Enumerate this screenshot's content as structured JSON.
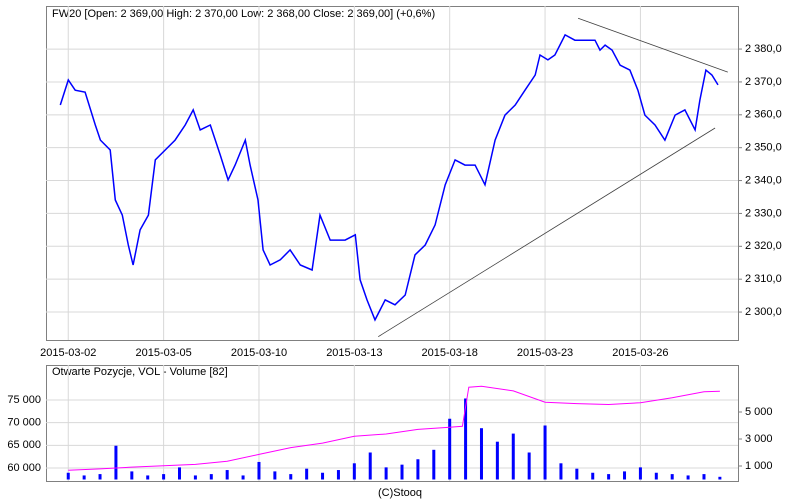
{
  "chart_data": [
    {
      "type": "line",
      "title": "FW20 [Open: 2 369,00  High: 2 370,00  Low: 2 368,00  Close: 2 369,00] (+0,6%)",
      "color": "#0000ff",
      "grid": true,
      "x": [
        -0.25,
        0,
        0.22,
        0.53,
        0.85,
        1.01,
        1.32,
        1.48,
        1.7,
        1.89,
        2.04,
        2.26,
        2.52,
        2.74,
        3.05,
        3.36,
        3.68,
        3.93,
        4.15,
        4.47,
        4.78,
        5.03,
        5.25,
        5.57,
        5.72,
        5.97,
        6.13,
        6.35,
        6.67,
        6.98,
        7.3,
        7.67,
        7.92,
        8.24,
        8.71,
        9.03,
        9.18,
        9.4,
        9.65,
        9.97,
        10.28,
        10.6,
        10.91,
        11.23,
        11.54,
        11.86,
        12.17,
        12.48,
        12.8,
        13.11,
        13.43,
        13.74,
        14.06,
        14.37,
        14.69,
        14.84,
        15.09,
        15.31,
        15.63,
        15.94,
        16.26,
        16.57,
        16.73,
        16.89,
        17.11,
        17.36,
        17.67,
        17.92,
        18.14,
        18.46,
        18.77,
        19.09,
        19.4,
        19.72,
        19.87,
        20.06,
        20.25,
        20.44
      ],
      "values": [
        2363,
        2370.6,
        2367.5,
        2366.9,
        2356.9,
        2352.3,
        2349.3,
        2334.1,
        2329.5,
        2320.4,
        2314.3,
        2325,
        2329.5,
        2346.3,
        2349.3,
        2352.3,
        2356.9,
        2361.5,
        2355.4,
        2356.9,
        2347.8,
        2340.2,
        2344.7,
        2352.3,
        2344.7,
        2334.1,
        2318.9,
        2314.3,
        2315.9,
        2318.9,
        2314.3,
        2312.8,
        2329.5,
        2321.9,
        2321.9,
        2323.5,
        2309.8,
        2303.7,
        2297.6,
        2303.7,
        2302.2,
        2305.2,
        2317.4,
        2320.4,
        2326.5,
        2338.7,
        2346.3,
        2344.7,
        2344.7,
        2338.7,
        2352.3,
        2359.9,
        2363,
        2367.5,
        2372.1,
        2378.2,
        2376.7,
        2378.2,
        2384.3,
        2382.7,
        2382.7,
        2382.7,
        2379.7,
        2381.2,
        2379.7,
        2375.1,
        2373.6,
        2367.5,
        2359.9,
        2356.9,
        2352.3,
        2359.9,
        2361.5,
        2355.4,
        2364.5,
        2373.6,
        2372.1,
        2369.1
      ],
      "lines": [
        {
          "x": [
            9.75,
            20.35
          ],
          "y": [
            2292.5,
            2356
          ]
        },
        {
          "x": [
            16.04,
            20.75
          ],
          "y": [
            2389.4,
            2373
          ]
        }
      ],
      "xlim": [
        -0.7,
        21.07
      ],
      "xticks": [
        {
          "value": 0,
          "label": "2015-03-02"
        },
        {
          "value": 3,
          "label": "2015-03-05"
        },
        {
          "value": 6,
          "label": "2015-03-10"
        },
        {
          "value": 9,
          "label": "2015-03-13"
        },
        {
          "value": 12,
          "label": "2015-03-18"
        },
        {
          "value": 15,
          "label": "2015-03-23"
        },
        {
          "value": 18,
          "label": "2015-03-26"
        }
      ],
      "ylim": [
        2291.5,
        2393.1
      ],
      "yticks": [
        {
          "value": 2300,
          "label": "2 300,0"
        },
        {
          "value": 2310,
          "label": "2 310,0"
        },
        {
          "value": 2320,
          "label": "2 320,0"
        },
        {
          "value": 2330,
          "label": "2 330,0"
        },
        {
          "value": 2340,
          "label": "2 340,0"
        },
        {
          "value": 2350,
          "label": "2 350,0"
        },
        {
          "value": 2360,
          "label": "2 360,0"
        },
        {
          "value": 2370,
          "label": "2 370,0"
        },
        {
          "value": 2380,
          "label": "2 380,0"
        }
      ]
    },
    {
      "type": "combo",
      "title": "Otwarte Pozycje, VOL - Volume [82]",
      "xlim": [
        -0.7,
        21.07
      ],
      "ylim": [
        57140,
        82700
      ],
      "yticks": [
        {
          "value": 60000,
          "label": "60 000"
        },
        {
          "value": 65000,
          "label": "65 000"
        },
        {
          "value": 70000,
          "label": "70 000"
        },
        {
          "value": 75000,
          "label": "75 000"
        }
      ],
      "y2lim": [
        -111,
        8481
      ],
      "y2ticks": [
        {
          "value": 1000,
          "label": "1 000"
        },
        {
          "value": 3000,
          "label": "3 000"
        },
        {
          "value": 5000,
          "label": "5 000"
        }
      ],
      "series": [
        {
          "type": "bar",
          "axis": "y2",
          "color": "#0000ff",
          "x": [
            0,
            0.5,
            1,
            1.5,
            2,
            2.5,
            3,
            3.5,
            4,
            4.5,
            5,
            5.5,
            6,
            6.5,
            7,
            7.5,
            8,
            8.5,
            9,
            9.5,
            10,
            10.5,
            11,
            11.5,
            12,
            12.5,
            13,
            13.5,
            14,
            14.5,
            15,
            15.5,
            16,
            16.5,
            17,
            17.5,
            18,
            18.5,
            19,
            19.5,
            20,
            20.5
          ],
          "values": [
            500,
            300,
            400,
            2500,
            600,
            300,
            400,
            900,
            300,
            400,
            700,
            300,
            1300,
            600,
            400,
            800,
            500,
            700,
            1200,
            2000,
            900,
            1100,
            1500,
            2200,
            4500,
            6000,
            3800,
            2800,
            3400,
            2000,
            4000,
            1200,
            800,
            500,
            400,
            600,
            900,
            500,
            400,
            300,
            400,
            200
          ]
        },
        {
          "type": "line",
          "axis": "y",
          "color": "#ff00ff",
          "x": [
            0,
            1,
            2,
            3,
            4,
            5,
            6,
            7,
            8,
            9,
            10,
            11,
            12,
            12.4,
            12.6,
            13,
            14,
            15,
            16,
            17,
            18,
            19,
            20,
            20.5
          ],
          "values": [
            59500,
            59800,
            60200,
            60500,
            60800,
            61500,
            63000,
            64500,
            65500,
            67000,
            67500,
            68500,
            69000,
            69200,
            77800,
            78000,
            77000,
            74500,
            74200,
            74000,
            74400,
            75500,
            76800,
            76900
          ]
        }
      ]
    }
  ],
  "credit": "(C)Stooq"
}
